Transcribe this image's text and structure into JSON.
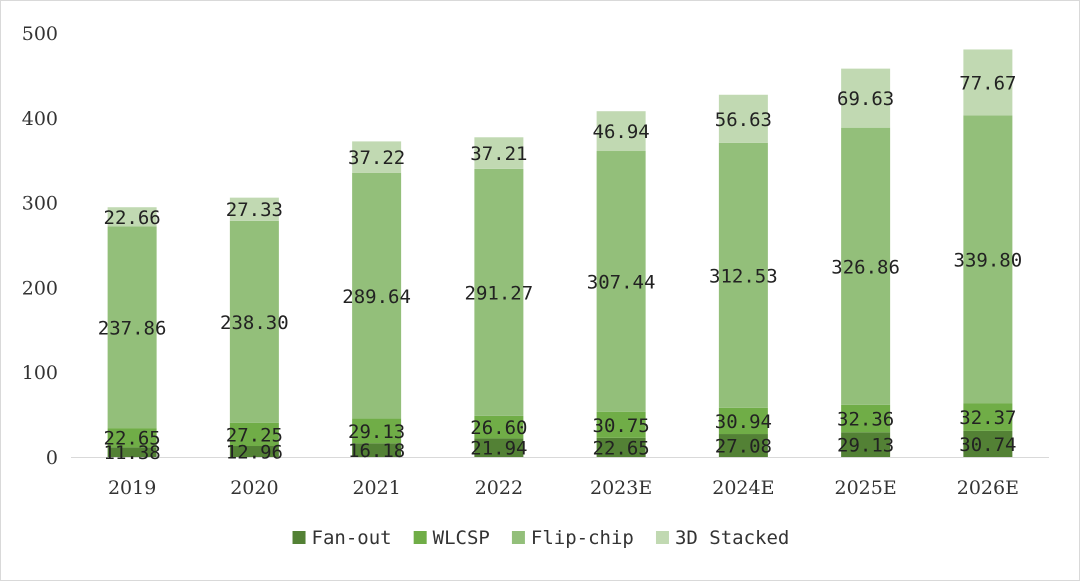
{
  "chart_data": {
    "type": "bar",
    "stacked": true,
    "categories": [
      "2019",
      "2020",
      "2021",
      "2022",
      "2023E",
      "2024E",
      "2025E",
      "2026E"
    ],
    "series": [
      {
        "name": "Fan-out",
        "color": "#538135",
        "values": [
          11.38,
          12.96,
          16.18,
          21.94,
          22.65,
          27.08,
          29.13,
          30.74
        ]
      },
      {
        "name": "WLCSP",
        "color": "#70ad47",
        "values": [
          22.65,
          27.25,
          29.13,
          26.6,
          30.75,
          30.94,
          32.36,
          32.37
        ]
      },
      {
        "name": "Flip-chip",
        "color": "#93bf7a",
        "values": [
          237.86,
          238.3,
          289.64,
          291.27,
          307.44,
          312.53,
          326.86,
          339.8
        ]
      },
      {
        "name": "3D Stacked",
        "color": "#c1d9b2",
        "values": [
          22.66,
          27.33,
          37.22,
          37.21,
          46.94,
          56.63,
          69.63,
          77.67
        ]
      }
    ],
    "labels": {
      "Fan-out": [
        "11.38",
        "12.96",
        "16.18",
        "21.94",
        "22.65",
        "27.08",
        "29.13",
        "30.74"
      ],
      "WLCSP": [
        "22.65",
        "27.25",
        "29.13",
        "26.60",
        "30.75",
        "30.94",
        "32.36",
        "32.37"
      ],
      "Flip-chip": [
        "237.86",
        "238.30",
        "289.64",
        "291.27",
        "307.44",
        "312.53",
        "326.86",
        "339.80"
      ],
      "3D Stacked": [
        "22.66",
        "27.33",
        "37.22",
        "37.21",
        "46.94",
        "56.63",
        "69.63",
        "77.67"
      ]
    },
    "yticks": [
      0,
      100,
      200,
      300,
      400,
      500
    ],
    "ylim": [
      0,
      500
    ],
    "grid": false,
    "legend_position": "bottom",
    "title": "",
    "xlabel": "",
    "ylabel": ""
  }
}
